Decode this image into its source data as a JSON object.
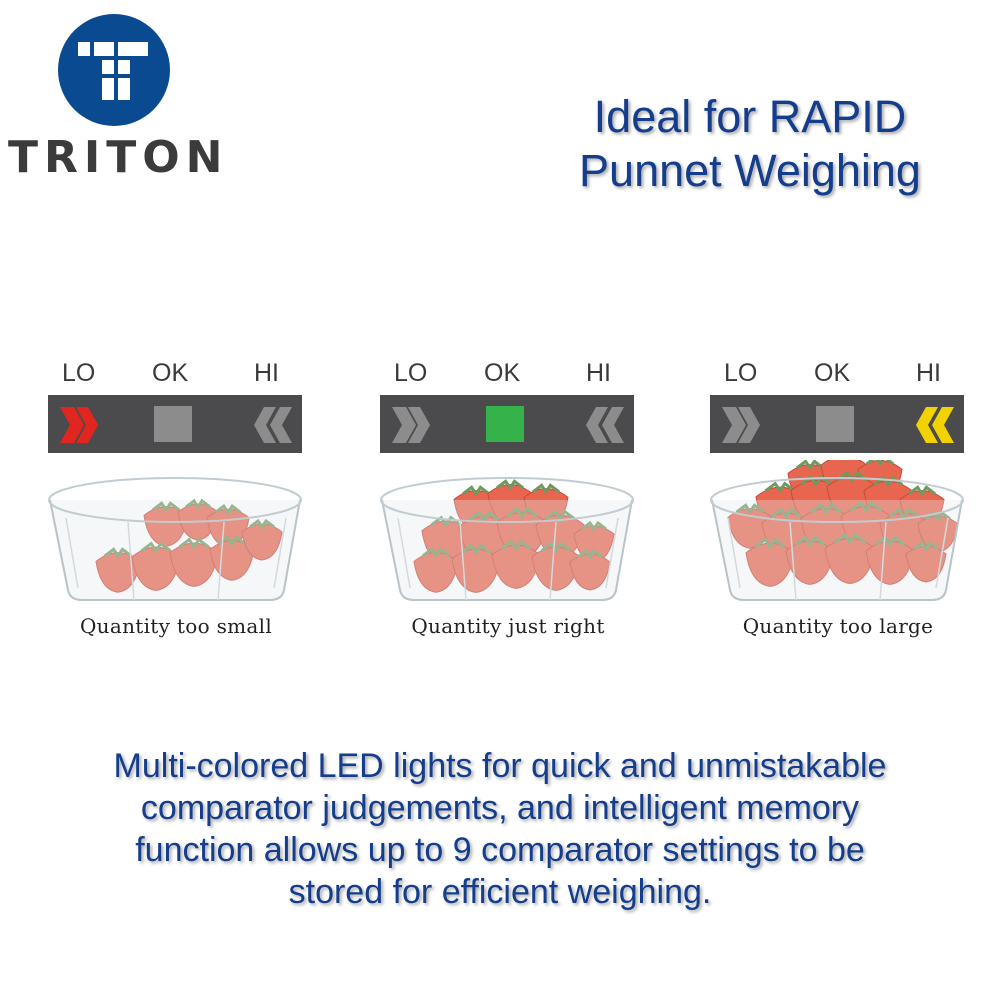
{
  "brand": {
    "name": "TRITON",
    "logo_icon": "triton-t-logo-icon",
    "logo_color": "#0a4a91"
  },
  "headline": {
    "lines": [
      "Ideal for RAPID",
      "Punnet Weighing"
    ],
    "color": "#143e8c"
  },
  "indicator_labels": {
    "lo": "LO",
    "ok": "OK",
    "hi": "HI"
  },
  "panels": [
    {
      "caption": "Quantity too small",
      "active_led": "LO",
      "active_color": "#e0261f",
      "image": "strawberry-punnet-underfilled"
    },
    {
      "caption": "Quantity just right",
      "active_led": "OK",
      "active_color": "#35b34a",
      "image": "strawberry-punnet-filled"
    },
    {
      "caption": "Quantity too large",
      "active_led": "HI",
      "active_color": "#f2d200",
      "image": "strawberry-punnet-overfilled"
    }
  ],
  "colors": {
    "led_bar": "#4b4b4d",
    "led_inactive": "#8c8c8c",
    "strawberry": "#e8654f",
    "leaf": "#6f9a5e"
  },
  "description": {
    "lines": [
      "Multi-colored LED lights for quick and unmistakable",
      "comparator judgements, and intelligent memory",
      "function allows up to 9 comparator settings to be",
      "stored for efficient weighing."
    ],
    "color": "#143e8c"
  }
}
